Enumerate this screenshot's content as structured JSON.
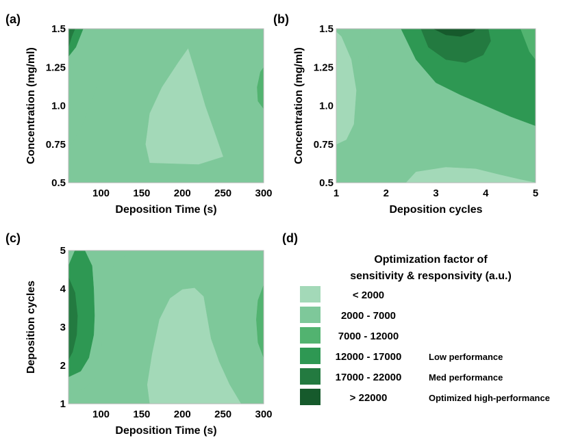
{
  "chart_data": [
    {
      "type": "heatmap",
      "panel": "(a)",
      "xlabel": "Deposition Time (s)",
      "ylabel": "Concentration (mg/ml)",
      "xlim": [
        60,
        300
      ],
      "ylim": [
        0.5,
        1.5
      ],
      "x_ticks": [
        "100",
        "150",
        "200",
        "250",
        "300"
      ],
      "x_tick_values": [
        100,
        150,
        200,
        250,
        300
      ],
      "y_ticks": [
        "0.5",
        "0.75",
        "1.0",
        "1.25",
        "1.5"
      ],
      "y_tick_values": [
        0.5,
        0.75,
        1.0,
        1.25,
        1.5
      ],
      "contour_levels": [
        {
          "level": "2000 - 7000",
          "region": [
            [
              100,
              0.5
            ],
            [
              300,
              0.5
            ],
            [
              300,
              0.73
            ],
            [
              275,
              0.76
            ],
            [
              250,
              0.83
            ],
            [
              240,
              0.95
            ],
            [
              225,
              1.12
            ],
            [
              212,
              1.3
            ],
            [
              205,
              1.45
            ],
            [
              200,
              1.5
            ],
            [
              125,
              1.5
            ],
            [
              105,
              1.3
            ],
            [
              90,
              1.05
            ],
            [
              75,
              0.85
            ],
            [
              60,
              0.72
            ],
            [
              60,
              0.5
            ]
          ]
        },
        {
          "level": "< 2000",
          "region": [
            [
              160,
              0.63
            ],
            [
              220,
              0.62
            ],
            [
              250,
              0.67
            ],
            [
              240,
              0.82
            ],
            [
              228,
              1.0
            ],
            [
              217,
              1.2
            ],
            [
              207,
              1.37
            ],
            [
              195,
              1.28
            ],
            [
              175,
              1.12
            ],
            [
              160,
              0.95
            ],
            [
              155,
              0.75
            ]
          ]
        },
        {
          "level": "7000 - 12000",
          "region": [
            [
              300,
              0.98
            ],
            [
              293,
              1.03
            ],
            [
              292,
              1.12
            ],
            [
              296,
              1.22
            ],
            [
              300,
              1.25
            ]
          ]
        },
        {
          "level": "12000 - 17000",
          "region": [
            [
              60,
              1.32
            ],
            [
              69,
              1.38
            ],
            [
              78,
              1.5
            ],
            [
              60,
              1.5
            ]
          ]
        },
        {
          "level": "17000 - 22000",
          "region": [
            [
              60,
              1.38
            ],
            [
              64,
              1.45
            ],
            [
              68,
              1.5
            ],
            [
              60,
              1.5
            ]
          ]
        }
      ]
    },
    {
      "type": "heatmap",
      "panel": "(b)",
      "xlabel": "Deposition cycles",
      "ylabel": "Concentration (mg/ml)",
      "xlim": [
        1,
        5
      ],
      "ylim": [
        0.5,
        1.5
      ],
      "x_ticks": [
        "1",
        "2",
        "3",
        "4",
        "5"
      ],
      "x_tick_values": [
        1,
        2,
        3,
        4,
        5
      ],
      "y_ticks": [
        "0.5",
        "0.75",
        "1.0",
        "1.25",
        "1.5"
      ],
      "y_tick_values": [
        0.5,
        0.75,
        1.0,
        1.25,
        1.5
      ],
      "contour_levels": [
        {
          "level": "2000 - 7000",
          "region": [
            [
              1,
              0.5
            ],
            [
              5,
              0.5
            ],
            [
              5,
              0.55
            ],
            [
              4.5,
              0.58
            ],
            [
              4,
              0.65
            ],
            [
              3.5,
              0.7
            ],
            [
              3,
              0.76
            ],
            [
              2.5,
              0.82
            ],
            [
              2,
              0.92
            ],
            [
              1.7,
              1.1
            ],
            [
              1.65,
              1.3
            ],
            [
              1.7,
              1.5
            ],
            [
              1,
              1.5
            ]
          ]
        },
        {
          "level": "< 2000",
          "region": [
            [
              1,
              0.75
            ],
            [
              1.2,
              0.78
            ],
            [
              1.35,
              0.88
            ],
            [
              1.4,
              1.1
            ],
            [
              1.3,
              1.3
            ],
            [
              1.1,
              1.45
            ],
            [
              1,
              1.48
            ]
          ]
        },
        {
          "level": "< 2000",
          "region": [
            [
              2.4,
              0.5
            ],
            [
              5,
              0.5
            ],
            [
              4.7,
              0.52
            ],
            [
              4.3,
              0.55
            ],
            [
              3.8,
              0.59
            ],
            [
              3.2,
              0.6
            ],
            [
              2.6,
              0.57
            ]
          ]
        },
        {
          "level": "12000 - 17000",
          "region": [
            [
              5,
              0.87
            ],
            [
              4.5,
              0.93
            ],
            [
              4,
              1.0
            ],
            [
              3.5,
              1.07
            ],
            [
              3,
              1.15
            ],
            [
              2.6,
              1.3
            ],
            [
              2.3,
              1.5
            ],
            [
              5,
              1.5
            ]
          ]
        },
        {
          "level": "7000 - 12000",
          "region": [
            [
              4.7,
              1.5
            ],
            [
              4.88,
              1.35
            ],
            [
              5,
              1.3
            ],
            [
              5,
              1.5
            ]
          ]
        },
        {
          "level": "17000 - 22000",
          "region": [
            [
              2.7,
              1.5
            ],
            [
              2.85,
              1.38
            ],
            [
              3.2,
              1.3
            ],
            [
              3.6,
              1.28
            ],
            [
              3.95,
              1.33
            ],
            [
              4.1,
              1.42
            ],
            [
              4.05,
              1.5
            ]
          ]
        },
        {
          "level": "> 22000",
          "region": [
            [
              2.95,
              1.5
            ],
            [
              3.2,
              1.46
            ],
            [
              3.5,
              1.45
            ],
            [
              3.75,
              1.48
            ],
            [
              3.8,
              1.5
            ]
          ]
        }
      ]
    },
    {
      "type": "heatmap",
      "panel": "(c)",
      "xlabel": "Deposition Time (s)",
      "ylabel": "Deposition cycles",
      "xlim": [
        60,
        300
      ],
      "ylim": [
        1,
        5
      ],
      "x_ticks": [
        "100",
        "150",
        "200",
        "250",
        "300"
      ],
      "x_tick_values": [
        100,
        150,
        200,
        250,
        300
      ],
      "y_ticks": [
        "1",
        "2",
        "3",
        "4",
        "5"
      ],
      "y_tick_values": [
        1,
        2,
        3,
        4,
        5
      ],
      "contour_levels": [
        {
          "level": "2000 - 7000",
          "region": [
            [
              60,
              1
            ],
            [
              300,
              1
            ],
            [
              300,
              5
            ],
            [
              140,
              5
            ],
            [
              118,
              4.7
            ],
            [
              108,
              4.3
            ],
            [
              104,
              3.9
            ],
            [
              102,
              3.0
            ],
            [
              100,
              2.2
            ],
            [
              94,
              1.7
            ],
            [
              80,
              1.4
            ],
            [
              60,
              1.25
            ]
          ]
        },
        {
          "level": "< 2000",
          "region": [
            [
              160,
              1
            ],
            [
              272,
              1
            ],
            [
              258,
              1.5
            ],
            [
              245,
              2.1
            ],
            [
              235,
              2.7
            ],
            [
              230,
              3.3
            ],
            [
              226,
              3.8
            ],
            [
              215,
              4.02
            ],
            [
              200,
              3.98
            ],
            [
              185,
              3.75
            ],
            [
              172,
              3.2
            ],
            [
              163,
              2.3
            ],
            [
              157,
              1.5
            ]
          ]
        },
        {
          "level": "12000 - 17000",
          "region": [
            [
              60,
              4.6
            ],
            [
              68,
              5
            ],
            [
              80,
              5
            ],
            [
              89,
              4.6
            ],
            [
              91,
              4.0
            ],
            [
              92,
              3.3
            ],
            [
              91,
              2.8
            ],
            [
              85,
              2.2
            ],
            [
              75,
              1.85
            ],
            [
              60,
              1.7
            ]
          ]
        },
        {
          "level": "17000 - 22000",
          "region": [
            [
              60,
              4.3
            ],
            [
              68,
              3.9
            ],
            [
              71,
              3.3
            ],
            [
              70,
              2.8
            ],
            [
              65,
              2.35
            ],
            [
              60,
              2.15
            ]
          ]
        },
        {
          "level": "7000 - 12000",
          "region": [
            [
              300,
              2.2
            ],
            [
              293,
              2.6
            ],
            [
              291,
              3.2
            ],
            [
              293,
              3.7
            ],
            [
              300,
              4.1
            ]
          ]
        }
      ]
    }
  ],
  "panels": {
    "a": {
      "label": "(a)"
    },
    "b": {
      "label": "(b)"
    },
    "c": {
      "label": "(c)"
    },
    "d": {
      "label": "(d)"
    }
  },
  "legend": {
    "title_lines": [
      "Optimization factor of",
      "sensitivity & responsivity (a.u.)"
    ],
    "entries": [
      {
        "level": "< 2000",
        "range": "< 2000",
        "note": "",
        "color": "#a3d9b8"
      },
      {
        "level": "2000 - 7000",
        "range": "2000  -  7000",
        "note": "",
        "color": "#7ec89a"
      },
      {
        "level": "7000 - 12000",
        "range": "7000  -  12000",
        "note": "",
        "color": "#52b370"
      },
      {
        "level": "12000 - 17000",
        "range": "12000  -  17000",
        "note": "Low performance",
        "color": "#2e9853"
      },
      {
        "level": "17000 - 22000",
        "range": "17000  -  22000",
        "note": "Med performance",
        "color": "#237a40"
      },
      {
        "level": "> 22000",
        "range": "> 22000",
        "note": "Optimized high-performance",
        "color": "#165a2c"
      }
    ]
  }
}
